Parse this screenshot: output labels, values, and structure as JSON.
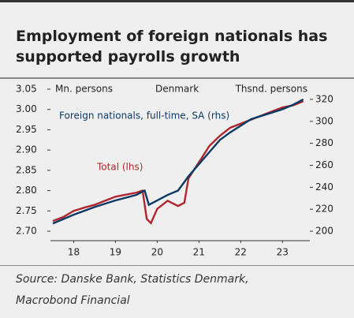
{
  "chart_data": {
    "type": "line",
    "title": [
      "Employment of foreign nationals has",
      "supported payrolls growth"
    ],
    "annotations": {
      "left_unit": "Mn. persons",
      "center": "Denmark",
      "right_unit": "Thsnd. persons",
      "foreign": "Foreign nationals, full-time, SA (rhs)",
      "total": "Total (lhs)"
    },
    "source": [
      "Source: Danske Bank, Statistics Denmark,",
      "Macrobond Financial"
    ],
    "xlim": [
      2018,
      2024.1
    ],
    "xticks": [
      {
        "value": 2018.5,
        "label": "18"
      },
      {
        "value": 2019.5,
        "label": "19"
      },
      {
        "value": 2020.5,
        "label": "20"
      },
      {
        "value": 2021.5,
        "label": "21"
      },
      {
        "value": 2022.5,
        "label": "22"
      },
      {
        "value": 2023.5,
        "label": "23"
      }
    ],
    "ylim": [
      2.7,
      3.05
    ],
    "yticks": [
      {
        "value": 2.7,
        "label": "2.70"
      },
      2.75,
      {
        "value": 2.8,
        "label": "2.80"
      },
      2.85,
      {
        "value": 2.9,
        "label": "2.90"
      },
      2.95,
      {
        "value": 3.0,
        "label": "3.00"
      },
      3.05
    ],
    "y2lim": [
      200,
      329.3
    ],
    "y2ticks": [
      200,
      220,
      240,
      260,
      280,
      300,
      320
    ],
    "series": [
      {
        "name": "Total (lhs)",
        "color": "#b0262c",
        "axis": "y",
        "x": [
          2018,
          2018.25,
          2018.5,
          2018.75,
          2019,
          2019.25,
          2019.5,
          2019.75,
          2020,
          2020.15,
          2020.25,
          2020.35,
          2020.5,
          2020.75,
          2021,
          2021.15,
          2021.25,
          2021.5,
          2021.75,
          2022,
          2022.25,
          2022.5,
          2022.75,
          2023,
          2023.25,
          2023.5,
          2023.75,
          2024
        ],
        "values": [
          2.725,
          2.735,
          2.75,
          2.758,
          2.765,
          2.775,
          2.785,
          2.79,
          2.795,
          2.8,
          2.73,
          2.72,
          2.755,
          2.775,
          2.762,
          2.77,
          2.83,
          2.87,
          2.91,
          2.935,
          2.955,
          2.965,
          2.975,
          2.985,
          2.995,
          3.005,
          3.01,
          3.02
        ]
      },
      {
        "name": "Foreign nationals, full-time, SA (rhs)",
        "color": "#0b3a64",
        "axis": "y2",
        "x": [
          2018,
          2018.5,
          2019,
          2019.5,
          2020,
          2020.2,
          2020.3,
          2020.5,
          2020.75,
          2021,
          2021.25,
          2021.5,
          2021.75,
          2022,
          2022.25,
          2022.5,
          2022.75,
          2023,
          2023.5,
          2023.75,
          2024
        ],
        "values": [
          207,
          215,
          222,
          228,
          233,
          237,
          224,
          228,
          233,
          237,
          250,
          261,
          272,
          283,
          290,
          296,
          302,
          305,
          311,
          315,
          320
        ]
      }
    ]
  }
}
